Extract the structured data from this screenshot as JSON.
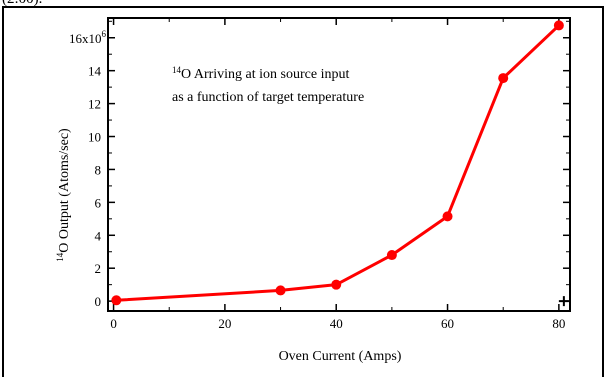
{
  "page_fragment": "(2:00).",
  "chart_data": {
    "type": "line",
    "xlabel": "Oven Current (Amps)",
    "ylabel": "Output (Atoms/sec)",
    "ylabel_sup": "14",
    "ylabel_o": "O",
    "annotation": {
      "sup": "14",
      "line1": "O Arriving at ion source input",
      "line2": "as a function of target temperature"
    },
    "x_ticks": [
      "0",
      "20",
      "40",
      "60",
      "80"
    ],
    "y_ticks": [
      "0",
      "2",
      "4",
      "6",
      "8",
      "10",
      "12",
      "14",
      "16x10"
    ],
    "y_top_exponent": "6",
    "xlim": [
      -1,
      82
    ],
    "ylim": [
      -0.6,
      17.2
    ],
    "series": [
      {
        "x": [
          0.5,
          30,
          40,
          50,
          60,
          70,
          80
        ],
        "y": [
          0.05,
          0.65,
          1.0,
          2.8,
          5.15,
          13.55,
          16.75
        ],
        "color": "#ff0000"
      }
    ]
  }
}
